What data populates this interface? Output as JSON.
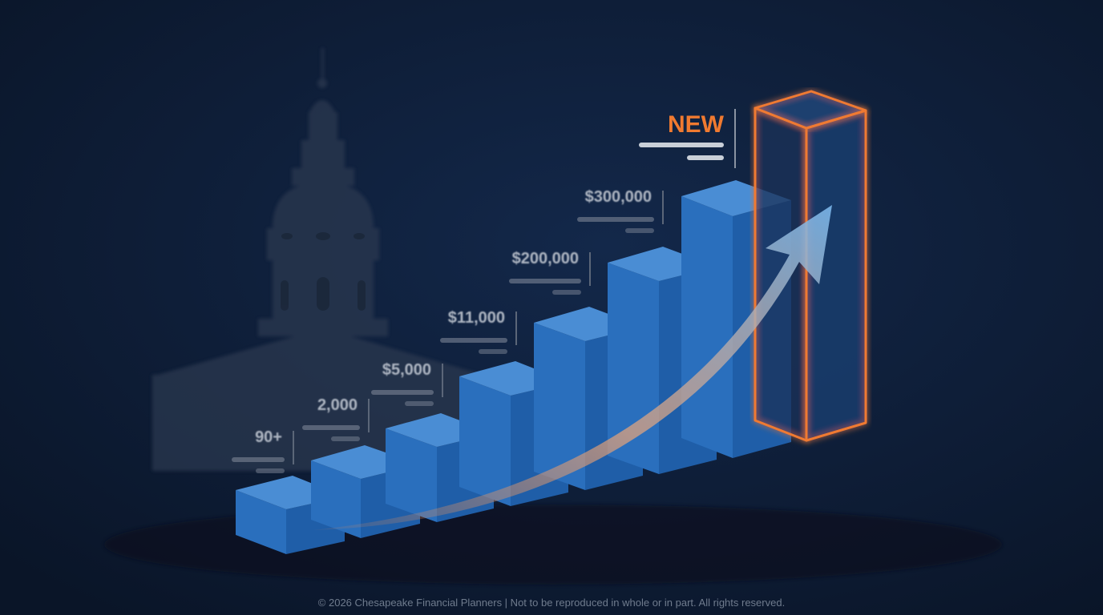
{
  "labels": [
    "90+",
    "2,000",
    "$5,000",
    "$11,000",
    "$200,000",
    "$300,000"
  ],
  "highlight": "NEW",
  "footer": "© 2026 Chesapeake Financial Planners | Not to be reproduced in whole or in part. All rights reserved."
}
